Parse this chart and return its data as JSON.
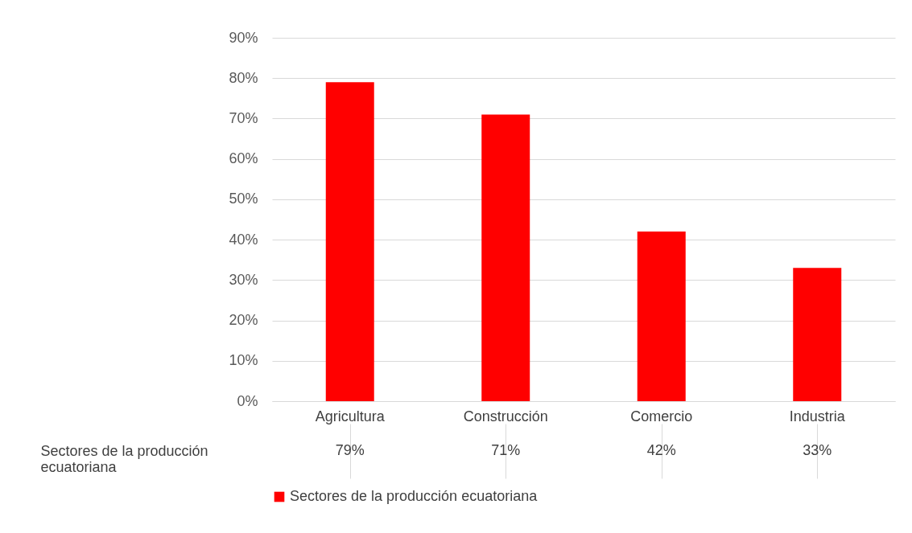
{
  "chart_data": {
    "type": "bar",
    "categories": [
      "Agricultura",
      "Construcción",
      "Comercio",
      "Industria"
    ],
    "series": [
      {
        "name": "Sectores de la producción ecuatoriana",
        "color": "#ff0000",
        "values": [
          79,
          71,
          42,
          33
        ],
        "value_labels": [
          "79%",
          "71%",
          "42%",
          "33%"
        ]
      }
    ],
    "ylim": [
      0,
      90
    ],
    "yticks": [
      {
        "value": 0,
        "label": "0%"
      },
      {
        "value": 10,
        "label": "10%"
      },
      {
        "value": 20,
        "label": "20%"
      },
      {
        "value": 30,
        "label": "30%"
      },
      {
        "value": 40,
        "label": "40%"
      },
      {
        "value": 50,
        "label": "50%"
      },
      {
        "value": 60,
        "label": "60%"
      },
      {
        "value": 70,
        "label": "70%"
      },
      {
        "value": 80,
        "label": "80%"
      },
      {
        "value": 90,
        "label": "90%"
      }
    ],
    "grid": "y",
    "legend": "bottom"
  }
}
